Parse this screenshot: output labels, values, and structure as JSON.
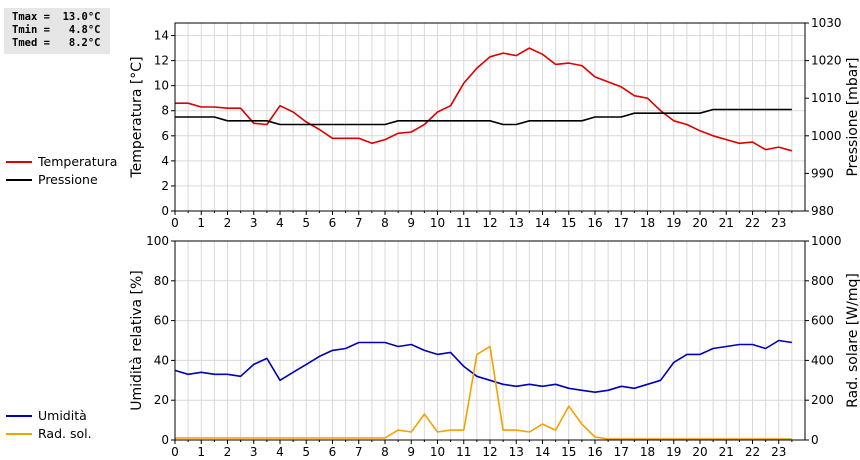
{
  "stats": {
    "tmax": "Tmax =  13.0°C",
    "tmin": "Tmin =   4.8°C",
    "tmed": "Tmed =   8.2°C"
  },
  "colors": {
    "temperatura": "#dd0000",
    "pressione": "#000000",
    "umidita": "#0000bb",
    "radsol": "#f5a100",
    "axis": "#000000",
    "grid": "#d9d9d9"
  },
  "legend_top": [
    {
      "label": "Temperatura",
      "color_key": "temperatura"
    },
    {
      "label": "Pressione",
      "color_key": "pressione"
    }
  ],
  "legend_bottom": [
    {
      "label": "Umidità",
      "color_key": "umidita"
    },
    {
      "label": "Rad. sol.",
      "color_key": "radsol"
    }
  ],
  "chart_data": [
    {
      "type": "line",
      "xlabel": "",
      "xlim": [
        0,
        24
      ],
      "xticks": [
        "0",
        "1",
        "2",
        "3",
        "4",
        "5",
        "6",
        "7",
        "8",
        "9",
        "10",
        "11",
        "12",
        "13",
        "14",
        "15",
        "16",
        "17",
        "18",
        "19",
        "20",
        "21",
        "22",
        "23"
      ],
      "ylabel": "Temperatura [°C]",
      "ylim": [
        0,
        15
      ],
      "yticks": [
        "0",
        "2",
        "4",
        "6",
        "8",
        "10",
        "12",
        "14"
      ],
      "y2label": "Pressione [mbar]",
      "y2lim": [
        980,
        1030
      ],
      "y2ticks": [
        "980",
        "990",
        "1000",
        "1010",
        "1020",
        "1030"
      ],
      "grid": true,
      "series": [
        {
          "name": "Temperatura",
          "axis": "left",
          "color_key": "temperatura",
          "x": [
            0,
            0.5,
            1,
            1.5,
            2,
            2.5,
            3,
            3.5,
            4,
            4.5,
            5,
            5.5,
            6,
            6.5,
            7,
            7.5,
            8,
            8.5,
            9,
            9.5,
            10,
            10.5,
            11,
            11.5,
            12,
            12.5,
            13,
            13.5,
            14,
            14.5,
            15,
            15.5,
            16,
            16.5,
            17,
            17.5,
            18,
            18.5,
            19,
            19.5,
            20,
            20.5,
            21,
            21.5,
            22,
            22.5,
            23,
            23.5
          ],
          "y": [
            8.6,
            8.6,
            8.3,
            8.3,
            8.2,
            8.2,
            7.0,
            6.9,
            8.4,
            7.9,
            7.1,
            6.5,
            5.8,
            5.8,
            5.8,
            5.4,
            5.7,
            6.2,
            6.3,
            6.9,
            7.9,
            8.4,
            10.2,
            11.4,
            12.3,
            12.6,
            12.4,
            13.0,
            12.5,
            11.7,
            11.8,
            11.6,
            10.7,
            10.3,
            9.9,
            9.2,
            9.0,
            8.0,
            7.2,
            6.9,
            6.4,
            6.0,
            5.7,
            5.4,
            5.5,
            4.9,
            5.1,
            4.8
          ]
        },
        {
          "name": "Pressione",
          "axis": "right",
          "color_key": "pressione",
          "x": [
            0,
            0.5,
            1,
            1.5,
            2,
            2.5,
            3,
            3.5,
            4,
            4.5,
            5,
            5.5,
            6,
            6.5,
            7,
            7.5,
            8,
            8.5,
            9,
            9.5,
            10,
            10.5,
            11,
            11.5,
            12,
            12.5,
            13,
            13.5,
            14,
            14.5,
            15,
            15.5,
            16,
            16.5,
            17,
            17.5,
            18,
            18.5,
            19,
            19.5,
            20,
            20.5,
            21,
            21.5,
            22,
            22.5,
            23,
            23.5
          ],
          "y": [
            1005,
            1005,
            1005,
            1005,
            1004,
            1004,
            1004,
            1004,
            1003,
            1003,
            1003,
            1003,
            1003,
            1003,
            1003,
            1003,
            1003,
            1004,
            1004,
            1004,
            1004,
            1004,
            1004,
            1004,
            1004,
            1003,
            1003,
            1004,
            1004,
            1004,
            1004,
            1004,
            1005,
            1005,
            1005,
            1006,
            1006,
            1006,
            1006,
            1006,
            1006,
            1007,
            1007,
            1007,
            1007,
            1007,
            1007,
            1007
          ]
        }
      ]
    },
    {
      "type": "line",
      "xlabel": "",
      "xlim": [
        0,
        24
      ],
      "xticks": [
        "0",
        "1",
        "2",
        "3",
        "4",
        "5",
        "6",
        "7",
        "8",
        "9",
        "10",
        "11",
        "12",
        "13",
        "14",
        "15",
        "16",
        "17",
        "18",
        "19",
        "20",
        "21",
        "22",
        "23"
      ],
      "ylabel": "Umidità relativa [%]",
      "ylim": [
        0,
        100
      ],
      "yticks": [
        "0",
        "20",
        "40",
        "60",
        "80",
        "100"
      ],
      "y2label": "Rad. solare [W/mq]",
      "y2lim": [
        0,
        1000
      ],
      "y2ticks": [
        "0",
        "200",
        "400",
        "600",
        "800",
        "1000"
      ],
      "grid": true,
      "series": [
        {
          "name": "Umidità",
          "axis": "left",
          "color_key": "umidita",
          "x": [
            0,
            0.5,
            1,
            1.5,
            2,
            2.5,
            3,
            3.5,
            4,
            4.5,
            5,
            5.5,
            6,
            6.5,
            7,
            7.5,
            8,
            8.5,
            9,
            9.5,
            10,
            10.5,
            11,
            11.5,
            12,
            12.5,
            13,
            13.5,
            14,
            14.5,
            15,
            15.5,
            16,
            16.5,
            17,
            17.5,
            18,
            18.5,
            19,
            19.5,
            20,
            20.5,
            21,
            21.5,
            22,
            22.5,
            23,
            23.5
          ],
          "y": [
            35,
            33,
            34,
            33,
            33,
            32,
            38,
            41,
            30,
            34,
            38,
            42,
            45,
            46,
            49,
            49,
            49,
            47,
            48,
            45,
            43,
            44,
            37,
            32,
            30,
            28,
            27,
            28,
            27,
            28,
            26,
            25,
            24,
            25,
            27,
            26,
            28,
            30,
            39,
            43,
            43,
            46,
            47,
            48,
            48,
            46,
            50,
            49
          ]
        },
        {
          "name": "Rad. sol.",
          "axis": "right",
          "color_key": "radsol",
          "x": [
            0,
            0.5,
            1,
            1.5,
            2,
            2.5,
            3,
            3.5,
            4,
            4.5,
            5,
            5.5,
            6,
            6.5,
            7,
            7.5,
            8,
            8.5,
            9,
            9.5,
            10,
            10.5,
            11,
            11.5,
            12,
            12.5,
            13,
            13.5,
            14,
            14.5,
            15,
            15.5,
            16,
            16.5,
            17,
            17.5,
            18,
            18.5,
            19,
            19.5,
            20,
            20.5,
            21,
            21.5,
            22,
            22.5,
            23,
            23.5
          ],
          "y": [
            10,
            10,
            10,
            10,
            10,
            10,
            10,
            10,
            10,
            10,
            10,
            10,
            10,
            10,
            10,
            10,
            10,
            50,
            40,
            130,
            40,
            50,
            50,
            430,
            470,
            50,
            50,
            40,
            80,
            50,
            170,
            80,
            15,
            5,
            5,
            5,
            5,
            5,
            5,
            5,
            5,
            5,
            5,
            5,
            5,
            5,
            5,
            5
          ]
        }
      ]
    }
  ]
}
